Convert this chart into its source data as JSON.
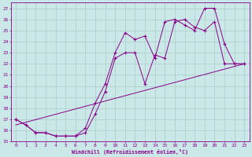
{
  "xlabel": "Windchill (Refroidissement éolien,°C)",
  "bg_color": "#cbe8e8",
  "grid_color": "#b0d0cc",
  "line_color": "#880088",
  "xlim": [
    -0.5,
    23.5
  ],
  "ylim": [
    15,
    27.5
  ],
  "xticks": [
    0,
    1,
    2,
    3,
    4,
    5,
    6,
    7,
    8,
    9,
    10,
    11,
    12,
    13,
    14,
    15,
    16,
    17,
    18,
    19,
    20,
    21,
    22,
    23
  ],
  "yticks": [
    15,
    16,
    17,
    18,
    19,
    20,
    21,
    22,
    23,
    24,
    25,
    26,
    27
  ],
  "line1_x": [
    0,
    1,
    2,
    3,
    4,
    5,
    6,
    7,
    8,
    9,
    10,
    11,
    12,
    13,
    14,
    15,
    16,
    17,
    18,
    19,
    20,
    21,
    22,
    23
  ],
  "line1_y": [
    17,
    16.5,
    15.8,
    15.8,
    15.5,
    15.5,
    15.5,
    16.2,
    18.5,
    20.2,
    23.0,
    24.8,
    24.2,
    24.5,
    22.5,
    25.8,
    26.0,
    25.5,
    25.0,
    27.0,
    27.0,
    23.8,
    22.0,
    22.0
  ],
  "line2_x": [
    0,
    1,
    2,
    3,
    4,
    5,
    6,
    7,
    8,
    9,
    10,
    11,
    12,
    13,
    14,
    15,
    16,
    17,
    18,
    19,
    20,
    21,
    22,
    23
  ],
  "line2_y": [
    17,
    16.5,
    15.8,
    15.8,
    15.5,
    15.5,
    15.5,
    15.8,
    17.5,
    19.5,
    22.5,
    23.0,
    23.0,
    20.2,
    22.8,
    22.5,
    25.8,
    26.0,
    25.3,
    25.0,
    25.8,
    22.0,
    22.0,
    22.0
  ],
  "line3_x": [
    0,
    23
  ],
  "line3_y": [
    16.5,
    22.0
  ]
}
